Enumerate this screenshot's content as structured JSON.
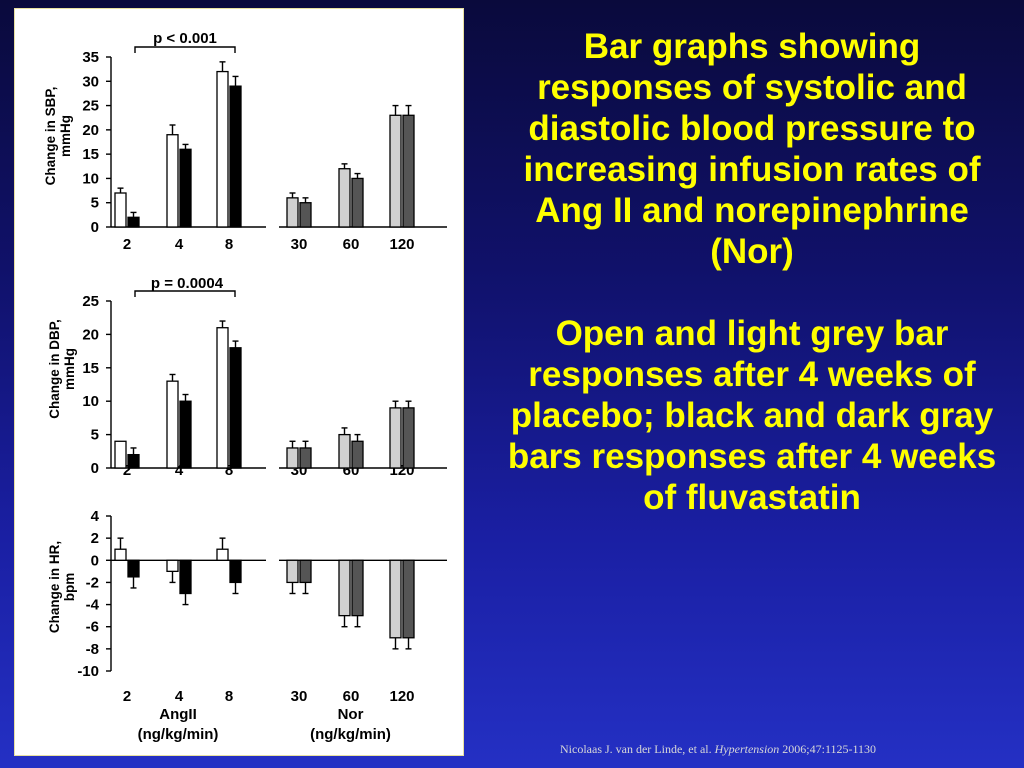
{
  "caption": {
    "paragraph1": "Bar graphs showing responses of systolic and diastolic blood pressure to increasing infusion rates  of  Ang II  and norepinephrine (Nor)",
    "paragraph2": "Open and light grey bar responses after 4 weeks of placebo; black and dark gray bars responses after 4 weeks of fluvastatin"
  },
  "citation": {
    "authors": "Nicolaas J. van der Linde, et al.",
    "journal": "Hypertension",
    "ref": "2006;47:1125-1130"
  },
  "colors": {
    "background_top": "#0a0a3c",
    "background_bottom": "#2430c4",
    "caption_text": "#ffff00",
    "angII_placebo": "#ffffff",
    "angII_fluvastatin": "#000000",
    "nor_placebo": "#d0d0d0",
    "nor_fluvastatin": "#555555"
  },
  "chart_data": [
    {
      "type": "bar",
      "ylabel": "Change in SBP, mmHg",
      "ylim": [
        0,
        35
      ],
      "yticks": [
        0,
        5,
        10,
        15,
        20,
        25,
        30,
        35
      ],
      "significance": "p < 0.001",
      "groups": [
        {
          "categories": [
            "2",
            "4",
            "8"
          ],
          "series": [
            {
              "values": [
                7,
                19,
                32
              ],
              "errors": [
                1,
                2,
                2
              ]
            },
            {
              "values": [
                2,
                16,
                29
              ],
              "errors": [
                1,
                1,
                2
              ]
            }
          ]
        },
        {
          "categories": [
            "30",
            "60",
            "120"
          ],
          "series": [
            {
              "values": [
                6,
                12,
                23
              ],
              "errors": [
                1,
                1,
                2
              ]
            },
            {
              "values": [
                5,
                10,
                23
              ],
              "errors": [
                1,
                1,
                2
              ]
            }
          ]
        }
      ]
    },
    {
      "type": "bar",
      "ylabel": "Change in DBP, mmHg",
      "ylim": [
        0,
        25
      ],
      "yticks": [
        0,
        5,
        10,
        15,
        20,
        25
      ],
      "significance": "p = 0.0004",
      "groups": [
        {
          "categories": [
            "2",
            "4",
            "8"
          ],
          "series": [
            {
              "values": [
                4,
                13,
                21
              ],
              "errors": [
                0,
                1,
                1
              ]
            },
            {
              "values": [
                2,
                10,
                18
              ],
              "errors": [
                1,
                1,
                1
              ]
            }
          ]
        },
        {
          "categories": [
            "30",
            "60",
            "120"
          ],
          "series": [
            {
              "values": [
                3,
                5,
                9
              ],
              "errors": [
                1,
                1,
                1
              ]
            },
            {
              "values": [
                3,
                4,
                9
              ],
              "errors": [
                1,
                1,
                1
              ]
            }
          ]
        }
      ]
    },
    {
      "type": "bar",
      "ylabel": "Change in HR, bpm",
      "ylim": [
        -10,
        4
      ],
      "yticks": [
        -10,
        -8,
        -6,
        -4,
        -2,
        0,
        2,
        4
      ],
      "groups": [
        {
          "categories": [
            "2",
            "4",
            "8"
          ],
          "title": "AngII",
          "subtitle": "(ng/kg/min)",
          "series": [
            {
              "values": [
                1,
                -1,
                1
              ],
              "errors": [
                1,
                1,
                1
              ]
            },
            {
              "values": [
                -1.5,
                -3,
                -2
              ],
              "errors": [
                1,
                1,
                1
              ]
            }
          ]
        },
        {
          "categories": [
            "30",
            "60",
            "120"
          ],
          "title": "Nor",
          "subtitle": "(ng/kg/min)",
          "series": [
            {
              "values": [
                -2,
                -5,
                -7
              ],
              "errors": [
                1,
                1,
                1
              ]
            },
            {
              "values": [
                -2,
                -5,
                -7
              ],
              "errors": [
                1,
                1,
                1
              ]
            }
          ]
        }
      ]
    }
  ]
}
